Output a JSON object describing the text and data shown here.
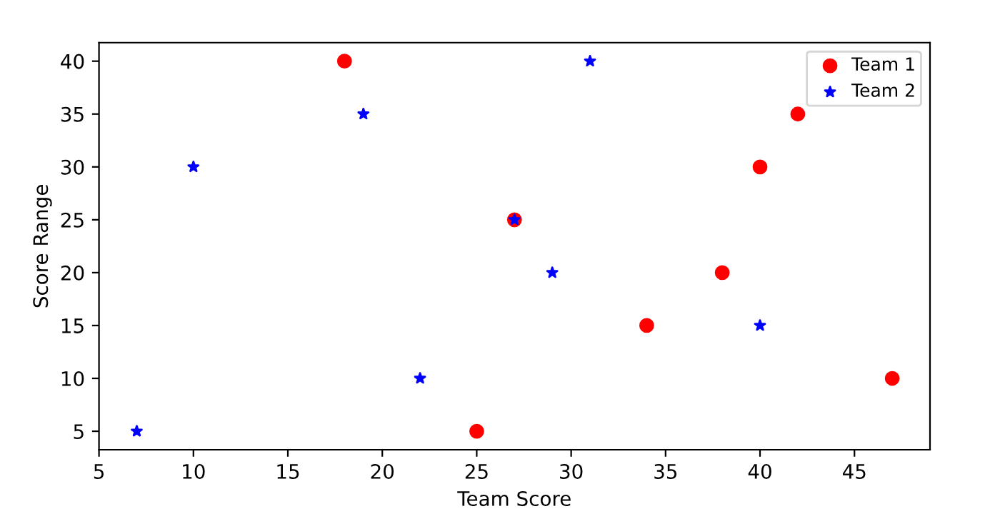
{
  "chart_data": {
    "type": "scatter",
    "xlabel": "Team Score",
    "ylabel": "Score Range",
    "series": [
      {
        "name": "Team 1",
        "color": "#ff0000",
        "marker": "circle",
        "x": [
          18,
          27,
          25,
          34,
          38,
          40,
          42,
          47
        ],
        "values": [
          40,
          25,
          5,
          15,
          20,
          30,
          35,
          10
        ]
      },
      {
        "name": "Team 2",
        "color": "#0000ff",
        "marker": "star",
        "x": [
          7,
          10,
          19,
          22,
          27,
          29,
          31,
          40
        ],
        "values": [
          5,
          30,
          35,
          10,
          25,
          20,
          40,
          15
        ]
      }
    ],
    "xlim": [
      5,
      49
    ],
    "ylim": [
      3.25,
      41.75
    ],
    "xticks": [
      5,
      10,
      15,
      20,
      25,
      30,
      35,
      40,
      45
    ],
    "yticks": [
      5,
      10,
      15,
      20,
      25,
      30,
      35,
      40
    ],
    "grid": false,
    "legend": "top right"
  }
}
